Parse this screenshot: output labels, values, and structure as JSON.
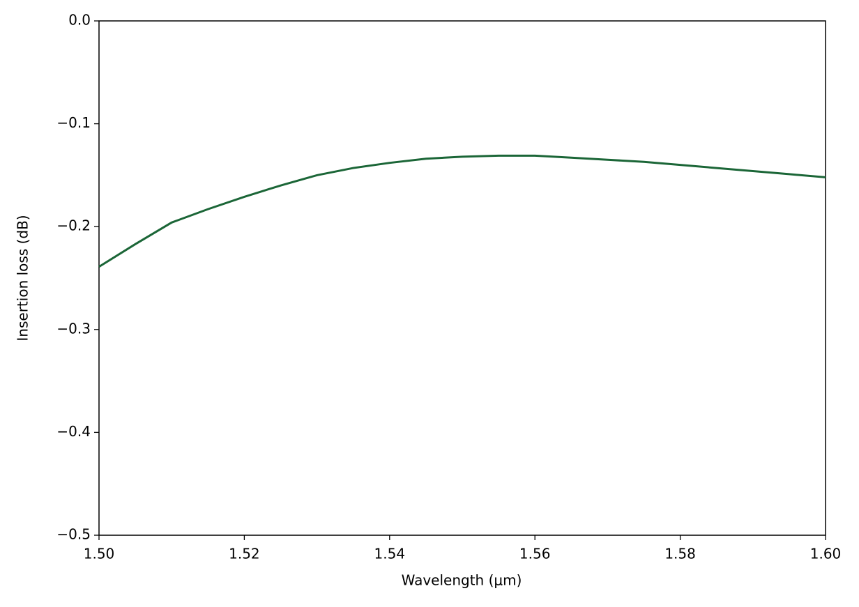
{
  "chart_data": {
    "type": "line",
    "xlabel": "Wavelength (μm)",
    "ylabel": "Insertion loss (dB)",
    "x": [
      1.5,
      1.505,
      1.51,
      1.515,
      1.52,
      1.525,
      1.53,
      1.535,
      1.54,
      1.545,
      1.55,
      1.555,
      1.56,
      1.565,
      1.57,
      1.575,
      1.58,
      1.585,
      1.59,
      1.595,
      1.6
    ],
    "series": [
      {
        "color": "#1b6637",
        "values": [
          -0.239,
          -0.217,
          -0.196,
          -0.183,
          -0.171,
          -0.16,
          -0.15,
          -0.143,
          -0.138,
          -0.134,
          -0.132,
          -0.131,
          -0.131,
          -0.133,
          -0.135,
          -0.137,
          -0.14,
          -0.143,
          -0.146,
          -0.149,
          -0.152
        ]
      }
    ],
    "xlim": [
      1.5,
      1.6
    ],
    "ylim": [
      -0.5,
      0
    ],
    "xticks": [
      {
        "value": 1.5,
        "label": "1.50"
      },
      {
        "value": 1.52,
        "label": "1.52"
      },
      {
        "value": 1.54,
        "label": "1.54"
      },
      {
        "value": 1.56,
        "label": "1.56"
      },
      {
        "value": 1.58,
        "label": "1.58"
      },
      {
        "value": 1.6,
        "label": "1.60"
      }
    ],
    "yticks": [
      {
        "value": -0.5,
        "label": "−0.5"
      },
      {
        "value": -0.4,
        "label": "−0.4"
      },
      {
        "value": -0.3,
        "label": "−0.3"
      },
      {
        "value": -0.2,
        "label": "−0.2"
      },
      {
        "value": -0.1,
        "label": "−0.1"
      },
      {
        "value": 0,
        "label": "0.0"
      }
    ],
    "grid": false
  }
}
